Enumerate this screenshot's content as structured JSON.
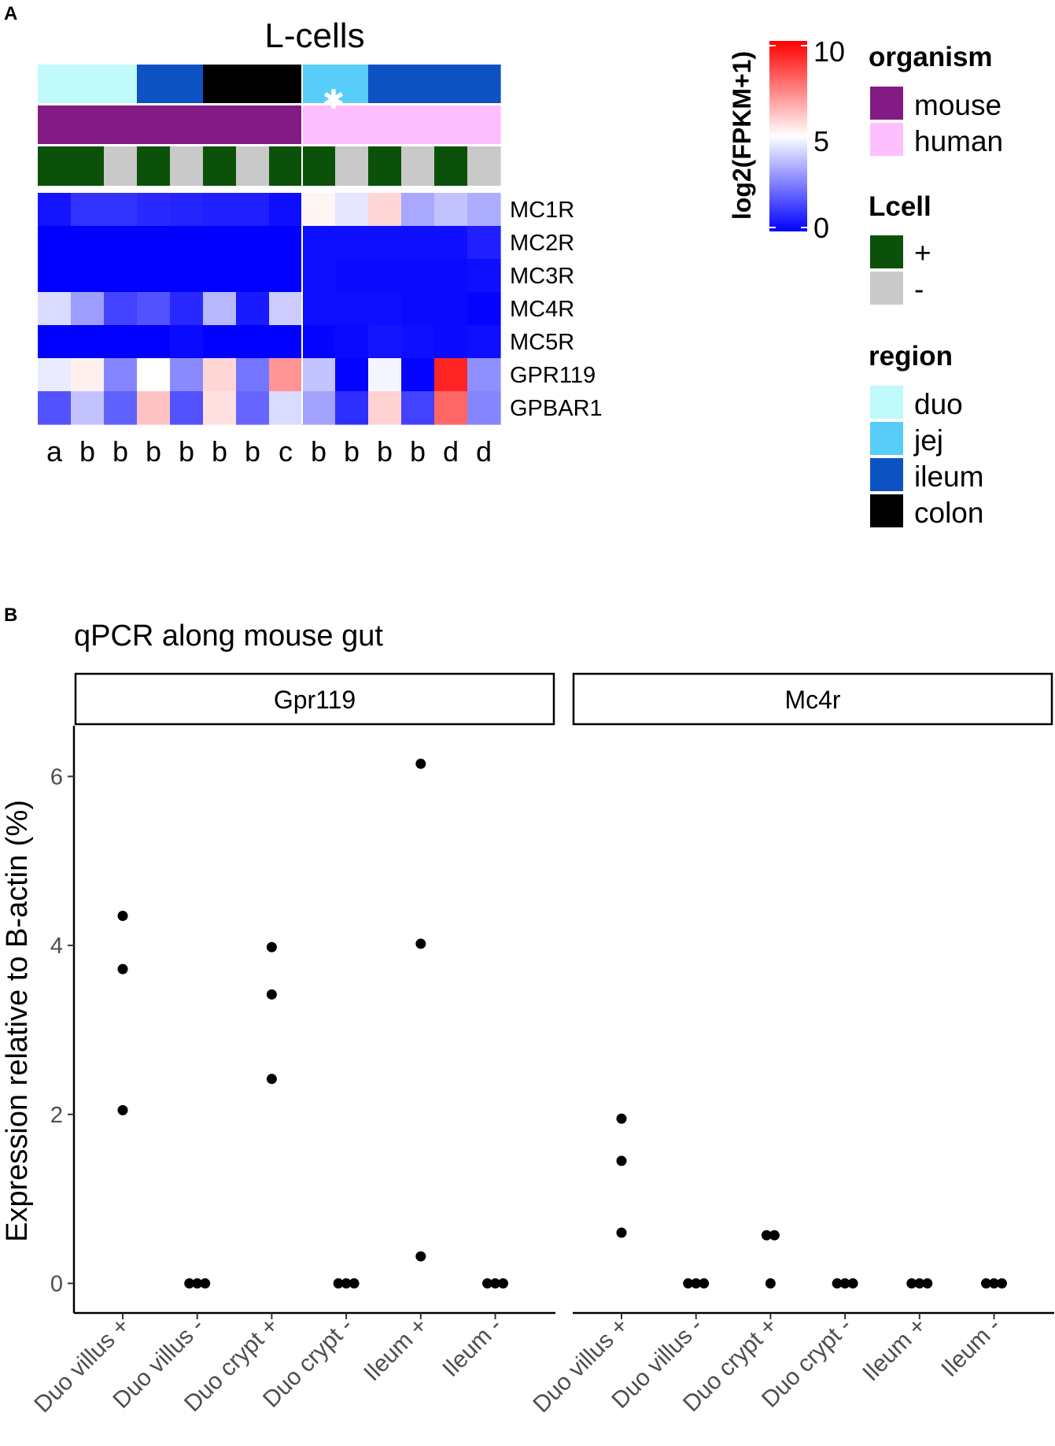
{
  "panel_a": {
    "label": "A",
    "title": "L-cells",
    "asterisk": "✱",
    "colorbar": {
      "title": "log2(FPKM+1)",
      "ticks": [
        "0",
        "5",
        "10"
      ],
      "colors": {
        "low": "#0000ff",
        "mid": "#ffffff",
        "high": "#ff0000"
      }
    },
    "legend": {
      "organism": {
        "title": "organism",
        "items": [
          {
            "label": "mouse",
            "color": "#831B84"
          },
          {
            "label": "human",
            "color": "#FEBFFE"
          }
        ]
      },
      "lcell": {
        "title": "Lcell",
        "items": [
          {
            "label": "+",
            "color": "#0C5109"
          },
          {
            "label": "-",
            "color": "#C9C9C9"
          }
        ]
      },
      "region": {
        "title": "region",
        "items": [
          {
            "label": "duo",
            "color": "#C0FAFB"
          },
          {
            "label": "jej",
            "color": "#58CDF9"
          },
          {
            "label": "ileum",
            "color": "#0C52C2"
          },
          {
            "label": "colon",
            "color": "#000000"
          }
        ]
      }
    }
  },
  "panel_b": {
    "label": "B",
    "title": "qPCR along mouse gut",
    "facets": [
      "Gpr119",
      "Mc4r"
    ],
    "ylabel": "Expression relative to B-actin (%)",
    "yticks": [
      "0",
      "2",
      "4",
      "6"
    ],
    "categories": [
      "Duo villus +",
      "Duo villus -",
      "Duo crypt +",
      "Duo crypt -",
      "Ileum +",
      "Ileum -"
    ]
  },
  "chart_data": [
    {
      "type": "heatmap",
      "title": "L-cells",
      "value_label": "log2(FPKM+1)",
      "range": [
        0,
        10
      ],
      "rows": [
        "MC1R",
        "MC2R",
        "MC3R",
        "MC4R",
        "MC5R",
        "GPR119",
        "GPBAR1"
      ],
      "columns": [
        "a",
        "b",
        "b",
        "b",
        "b",
        "b",
        "b",
        "c",
        "b",
        "b",
        "b",
        "b",
        "d",
        "d"
      ],
      "column_annotations": {
        "region": [
          "duo",
          "duo",
          "duo",
          "ileum",
          "ileum",
          "colon",
          "colon",
          "colon",
          "jej",
          "jej",
          "ileum",
          "ileum",
          "ileum",
          "ileum"
        ],
        "organism": [
          "mouse",
          "mouse",
          "mouse",
          "mouse",
          "mouse",
          "mouse",
          "mouse",
          "mouse",
          "human",
          "human",
          "human",
          "human",
          "human",
          "human"
        ],
        "Lcell": [
          "+",
          "+",
          "-",
          "+",
          "-",
          "+",
          "-",
          "+",
          "+",
          "-",
          "+",
          "-",
          "+",
          "-"
        ]
      },
      "values": [
        [
          0.4,
          1.0,
          1.0,
          0.8,
          0.7,
          0.6,
          0.6,
          0.3,
          5.2,
          4.5,
          5.8,
          3.3,
          3.8,
          3.4
        ],
        [
          0.0,
          0.0,
          0.0,
          0.0,
          0.0,
          0.0,
          0.0,
          0.0,
          0.3,
          0.3,
          0.3,
          0.3,
          0.3,
          0.6
        ],
        [
          0.0,
          0.0,
          0.0,
          0.0,
          0.0,
          0.0,
          0.0,
          0.0,
          0.3,
          0.2,
          0.2,
          0.2,
          0.2,
          0.3
        ],
        [
          4.3,
          3.1,
          1.3,
          1.6,
          0.8,
          3.6,
          0.5,
          4.0,
          0.3,
          0.3,
          0.3,
          0.2,
          0.2,
          0.1
        ],
        [
          0.0,
          0.0,
          0.0,
          0.0,
          0.2,
          0.0,
          0.0,
          0.0,
          0.1,
          0.2,
          0.4,
          0.3,
          0.2,
          0.3
        ],
        [
          4.6,
          5.3,
          2.6,
          5.0,
          2.7,
          5.8,
          2.3,
          7.1,
          3.8,
          0.1,
          4.8,
          0.1,
          9.3,
          2.8
        ],
        [
          1.6,
          3.8,
          1.9,
          6.2,
          1.6,
          5.6,
          2.0,
          4.3,
          3.2,
          0.9,
          5.9,
          1.3,
          8.0,
          2.6
        ]
      ]
    },
    {
      "type": "scatter",
      "title": "qPCR along mouse gut",
      "ylabel": "Expression relative to B-actin (%)",
      "ylim": [
        -0.35,
        6.6
      ],
      "categories": [
        "Duo villus +",
        "Duo villus -",
        "Duo crypt +",
        "Duo crypt -",
        "Ileum +",
        "Ileum -"
      ],
      "series": [
        {
          "name": "Gpr119",
          "values": [
            [
              4.35,
              3.72,
              2.05
            ],
            [
              0,
              0,
              0
            ],
            [
              3.98,
              3.42,
              2.42
            ],
            [
              0,
              0,
              0
            ],
            [
              6.15,
              4.02,
              0.32
            ],
            [
              0,
              0,
              0
            ]
          ]
        },
        {
          "name": "Mc4r",
          "values": [
            [
              1.95,
              1.45,
              0.6
            ],
            [
              0,
              0,
              0
            ],
            [
              0.57,
              0.57,
              0
            ],
            [
              0,
              0,
              0
            ],
            [
              0,
              0,
              0
            ],
            [
              0,
              0,
              0
            ]
          ]
        }
      ]
    }
  ]
}
